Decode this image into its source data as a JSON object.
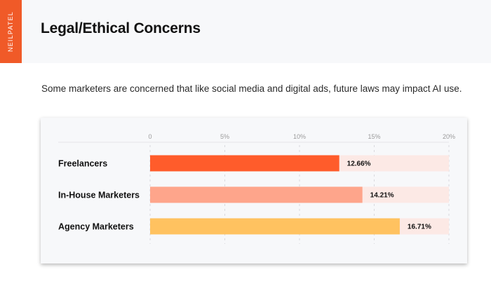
{
  "brand": {
    "name": "NEILPATEL",
    "color": "#f05a28"
  },
  "header": {
    "title": "Legal/Ethical Concerns"
  },
  "description": "Some marketers are concerned that like social media and digital ads, future laws may impact AI use.",
  "chart_data": {
    "type": "bar",
    "orientation": "horizontal",
    "categories": [
      "Freelancers",
      "In-House Marketers",
      "Agency Marketers"
    ],
    "values": [
      12.66,
      14.21,
      16.71
    ],
    "value_labels": [
      "12.66%",
      "14.21%",
      "16.71%"
    ],
    "xlim": [
      0,
      20
    ],
    "xticks": [
      0,
      5,
      10,
      15,
      20
    ],
    "xtick_labels": [
      "0",
      "5%",
      "10%",
      "15%",
      "20%"
    ],
    "grid": true,
    "bar_colors": [
      "#ff5c2b",
      "#fea58b",
      "#ffc260"
    ],
    "track_color": "#fce9e5"
  }
}
